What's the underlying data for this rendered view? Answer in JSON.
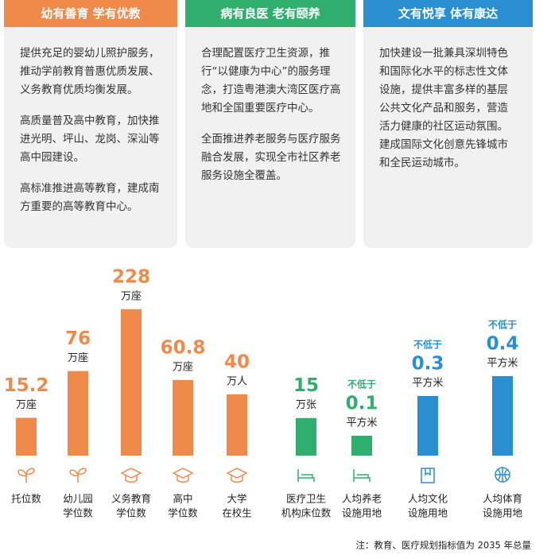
{
  "cards": [
    {
      "title": "幼有善育  学有优教",
      "color": "#f08a4b",
      "paragraphs": [
        "提供充足的婴幼儿照护服务，推动学前教育普惠优质发展、义务教育优质均衡发展。",
        "高质量普及高中教育，加快推进光明、坪山、龙岗、深汕等高中园建设。",
        "高标准推进高等教育，建成南方重要的高等教育中心。"
      ]
    },
    {
      "title": "病有良医  老有颐养",
      "color": "#2fae6e",
      "paragraphs": [
        "合理配置医疗卫生资源，推行“以健康为中心”的服务理念，打造粤港澳大湾区医疗高地和全国重要医疗中心。",
        "全面推进养老服务与医疗服务融合发展，实现全市社区养老服务设施全覆盖。"
      ]
    },
    {
      "title": "文有悦享  体有康达",
      "color": "#2a8fd0",
      "paragraphs": [
        "加快建设一批兼具深圳特色和国际化水平的标志性文体设施，提供丰富多样的基层公共文化产品和服务，营造活力健康的社区运动氛围。建成国际文化创意先锋城市和全民运动城市。"
      ]
    }
  ],
  "chart_data": {
    "type": "bar",
    "items": [
      {
        "value": 15.2,
        "unit": "万座",
        "label": [
          "托位数"
        ],
        "color": "#f08a4b"
      },
      {
        "value": 76,
        "unit": "万座",
        "label": [
          "幼儿园",
          "学位数"
        ],
        "color": "#f08a4b"
      },
      {
        "value": 228,
        "unit": "万座",
        "label": [
          "义务教育",
          "学位数"
        ],
        "color": "#f08a4b"
      },
      {
        "value": 60.8,
        "unit": "万座",
        "label": [
          "高中",
          "学位数"
        ],
        "color": "#f08a4b"
      },
      {
        "value": 40,
        "unit": "万人",
        "label": [
          "大学",
          "在校生"
        ],
        "color": "#f08a4b"
      },
      {
        "value": 15,
        "unit": "万张",
        "label": [
          "医疗卫生",
          "机构床位数"
        ],
        "color": "#2fae6e"
      },
      {
        "prefix": "不低于",
        "value": 0.1,
        "unit": "平方米",
        "label": [
          "人均养老",
          "设施用地"
        ],
        "color": "#2fae6e"
      },
      {
        "prefix": "不低于",
        "value": 0.3,
        "unit": "平方米",
        "label": [
          "人均文化",
          "设施用地"
        ],
        "color": "#2a8fd0"
      },
      {
        "prefix": "不低于",
        "value": 0.4,
        "unit": "平方米",
        "label": [
          "人均体育",
          "设施用地"
        ],
        "color": "#2a8fd0"
      }
    ],
    "note": "注：教育、医疗规划指标值为 2035 年总量"
  }
}
